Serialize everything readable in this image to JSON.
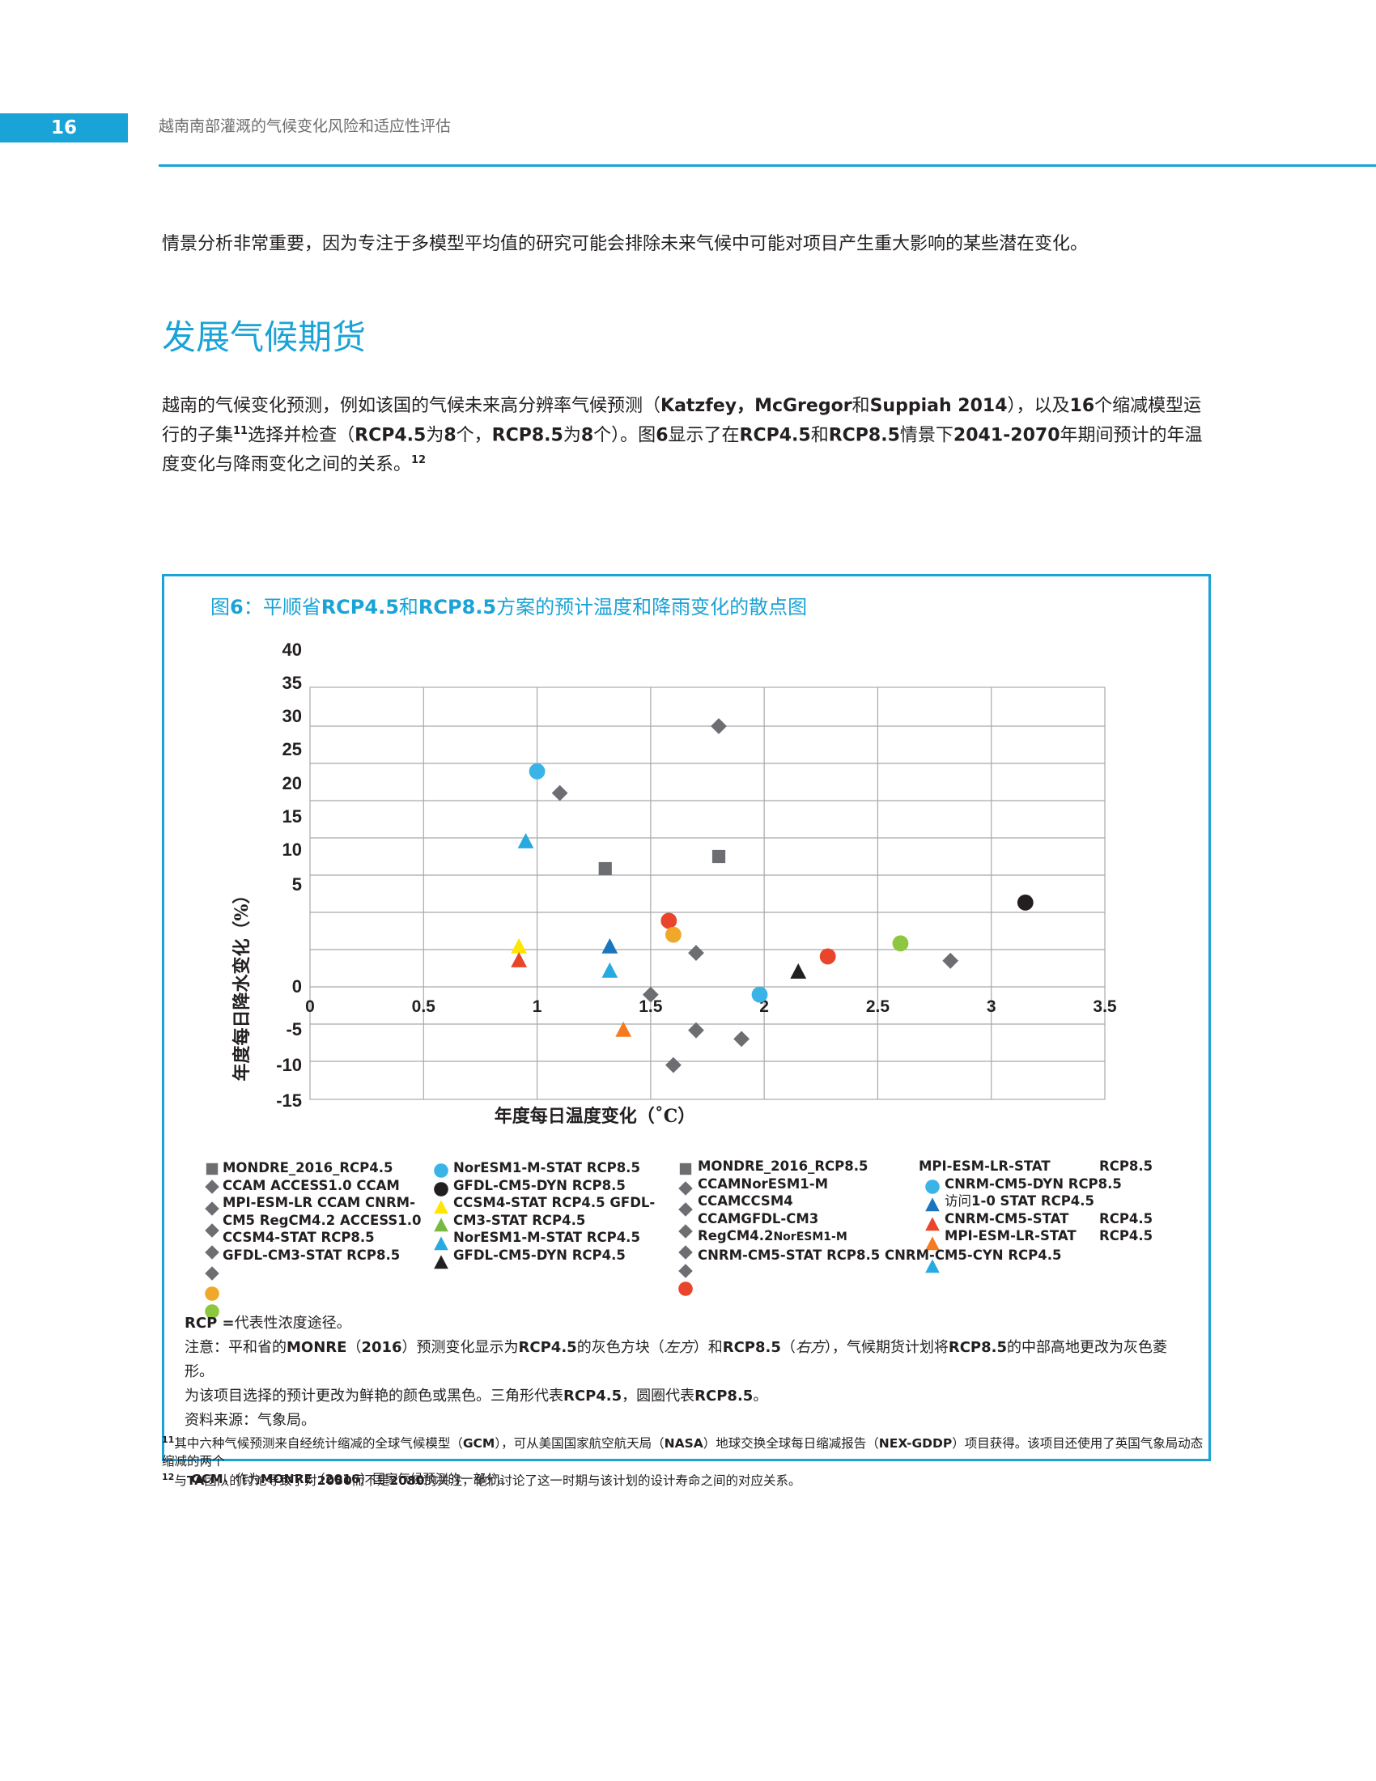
{
  "header": {
    "page_number": "16",
    "running_title": "越南南部灌溉的气候变化风险和适应性评估"
  },
  "intro": {
    "text": "情景分析非常重要，因为专注于多模型平均值的研究可能会排除未来气候中可能对项目产生重大影响的某些潜在变化。"
  },
  "section": {
    "title": "发展气候期货",
    "paragraph": {
      "p1": "越南的气候变化预测，例如该国的气候未来高分辨率气候预测（",
      "authors": "Katzfey，McGregor",
      "and1": "和",
      "author3": "Suppiah 2014",
      "p2": "），以及",
      "n16": "16",
      "p3": "个缩减模型运行的子集",
      "sup11": "11",
      "p4": "选择并检查（",
      "rcp45": "RCP4.5",
      "wei1": "为",
      "n8a": "8",
      "p5": "个，",
      "rcp85": "RCP8.5",
      "wei2": "为",
      "n8b": "8",
      "p6": "个）。图",
      "n6": "6",
      "p7": "显示了在",
      "rcp45b": "RCP4.5",
      "he": "和",
      "rcp85b": "RCP8.5",
      "p8": "情景下",
      "years": "2041-2070",
      "p9": "年期间预计的年温度变化与降雨变化之间的关系。",
      "sup12": "12"
    }
  },
  "figure": {
    "title_pre": "图",
    "title_num": "6",
    "title_colon": "：平顺省",
    "title_rcp45": "RCP4.5",
    "title_he": "和",
    "title_rcp85": "RCP8.5",
    "title_post": "方案的预计温度和降雨变化的散点图"
  },
  "chart_data": {
    "type": "scatter",
    "title": "",
    "xlabel": "年度每日温度变化（˚C）",
    "ylabel": "年度每日降水变化（%）",
    "xlim": [
      0,
      3.5
    ],
    "x_ticks": [
      "0",
      "0.5",
      "1",
      "1.5",
      "2",
      "2.5",
      "3",
      "3.5"
    ],
    "y_ticks": [
      "40",
      "35",
      "30",
      "25",
      "20",
      "15",
      "10",
      "5",
      "0",
      "-5",
      "-10",
      "-15"
    ],
    "grid": true,
    "legend_position": "bottom",
    "colors": {
      "grey": "#6d6e71",
      "blue": "#3ab4e6",
      "black": "#231f20",
      "red": "#e8452b",
      "orange": "#f0a82a",
      "green": "#8dc63f",
      "yellow": "#ffe500",
      "tri_blue": "#1b75bc",
      "tri_orange": "#f47b20",
      "tri_green": "#79b941",
      "cyan": "#27aae1"
    },
    "points": [
      {
        "shape": "diamond",
        "color": "grey",
        "x": 1.8,
        "y": 30
      },
      {
        "shape": "circle",
        "color": "blue",
        "x": 1.0,
        "y": 24.8
      },
      {
        "shape": "diamond",
        "color": "grey",
        "x": 1.1,
        "y": 22.3
      },
      {
        "shape": "triangle",
        "color": "cyan",
        "x": 0.95,
        "y": 16.7
      },
      {
        "shape": "square",
        "color": "grey",
        "x": 1.3,
        "y": 13.6
      },
      {
        "shape": "square",
        "color": "grey",
        "x": 1.8,
        "y": 15.0
      },
      {
        "shape": "circle",
        "color": "black",
        "x": 3.15,
        "y": 9.7
      },
      {
        "shape": "circle",
        "color": "red",
        "x": 1.58,
        "y": 7.6
      },
      {
        "shape": "circle",
        "color": "orange",
        "x": 1.6,
        "y": 6.0
      },
      {
        "shape": "triangle",
        "color": "yellow",
        "x": 0.92,
        "y": 4.6
      },
      {
        "shape": "triangle",
        "color": "red",
        "x": 0.92,
        "y": 3.0
      },
      {
        "shape": "triangle",
        "color": "tri_blue",
        "x": 1.32,
        "y": 4.6
      },
      {
        "shape": "triangle",
        "color": "cyan",
        "x": 1.32,
        "y": 1.8
      },
      {
        "shape": "diamond",
        "color": "grey",
        "x": 1.7,
        "y": 3.9
      },
      {
        "shape": "circle",
        "color": "green",
        "x": 2.6,
        "y": 5.0
      },
      {
        "shape": "diamond",
        "color": "grey",
        "x": 2.82,
        "y": 3.0
      },
      {
        "shape": "circle",
        "color": "red",
        "x": 2.28,
        "y": 3.5
      },
      {
        "shape": "triangle",
        "color": "black",
        "x": 2.15,
        "y": 1.7
      },
      {
        "shape": "circle",
        "color": "blue",
        "x": 1.98,
        "y": -0.9
      },
      {
        "shape": "diamond",
        "color": "grey",
        "x": 1.5,
        "y": -0.9
      },
      {
        "shape": "triangle",
        "color": "tri_orange",
        "x": 1.38,
        "y": -5.0
      },
      {
        "shape": "diamond",
        "color": "grey",
        "x": 1.7,
        "y": -5.0
      },
      {
        "shape": "diamond",
        "color": "grey",
        "x": 1.9,
        "y": -6.0
      },
      {
        "shape": "diamond",
        "color": "grey",
        "x": 1.6,
        "y": -9.0
      }
    ],
    "legend": {
      "col1": [
        "MONDRE_2016_RCP4.5",
        "CCAM ACCESS1.0 CCAM",
        "MPI-ESM-LR CCAM CNRM-",
        "CM5 RegCM4.2 ACCESS1.0",
        "CCSM4-STAT RCP8.5",
        "GFDL-CM3-STAT RCP8.5"
      ],
      "col2": [
        "NorESM1-M-STAT RCP8.5",
        "GFDL-CM5-DYN RCP8.5",
        "CCSM4-STAT RCP4.5 GFDL-",
        "CM3-STAT RCP4.5",
        "NorESM1-M-STAT RCP4.5",
        "GFDL-CM5-DYN RCP4.5"
      ],
      "col3": [
        "MONDRE_2016_RCP8.5",
        "CCAMNorESM1-M",
        "CCAMCCSM4",
        "CCAMGFDL-CM3",
        "RegCM4.2",
        "NorESM1-M",
        "CNRM-CM5-STAT RCP8.5 CNRM-CM5-CYN RCP4.5"
      ],
      "col4": [
        "MPI-ESM-LR-STAT",
        "CNRM-CM5-DYN RCP8.5",
        "访问",
        "1-0 STAT RCP4.5",
        "CNRM-CM5-STAT",
        "MPI-ESM-LR-STAT"
      ],
      "col5": [
        "RCP8.5",
        "RCP4.5",
        "RCP4.5"
      ]
    }
  },
  "notes": {
    "rcp_label": "RCP =",
    "rcp_def": "代表性浓度途径。",
    "n1a": "注意：平和省的",
    "n1b": "MONRE",
    "n1c": "（",
    "n1d": "2016",
    "n1e": "）预测变化显示为",
    "n1f": "RCP4.5",
    "n1g": "的灰色方块（",
    "n1h": "左方",
    "n1i": "）和",
    "n1j": "RCP8.5",
    "n1k": "（",
    "n1l": "右方",
    "n1m": "），气候期货计划将",
    "n1n": "RCP8.5",
    "n1o": "的中部高地更改为灰色菱形。",
    "n2a": "为该项目选择的预计更改为鲜艳的颜色或黑色。三角形代表",
    "n2b": "RCP4.5",
    "n2c": "，圆圈代表",
    "n2d": "RCP8.5",
    "n2e": "。",
    "source": "资料来源：气象局。"
  },
  "footnotes": {
    "f11_num": "11",
    "f11a": "其中六种气候预测来自经统计缩减的全球气候模型（",
    "f11b": "GCM",
    "f11c": "），可从美国国家航空航天局（",
    "f11d": "NASA",
    "f11e": "）地球交换全球每日缩减报告（",
    "f11f": "NEX-GDDP",
    "f11g": "）项目获得。该项目还使用了英国气象局动态缩减的两个",
    "f11h": "GCM",
    "f11i": "，作为",
    "f11j": "MONRE",
    "f11k": "（",
    "f11l": "2016",
    "f11m": "）国家气候预测的一部分。",
    "f12_num": "12",
    "f12a": "与",
    "f12b": "TA",
    "f12c": "团队的讨论导致了对",
    "f12d": "2050",
    "f12e": "而不是",
    "f12f": "2080",
    "f12g": "的关注，他们讨论了这一时期与该计划的设计寿命之间的对应关系。"
  }
}
